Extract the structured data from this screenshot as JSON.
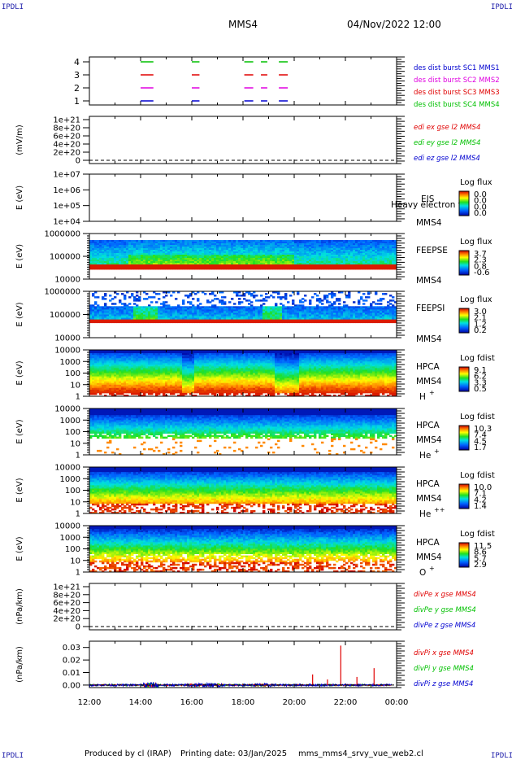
{
  "header": {
    "corner_tl": "IPDLI",
    "corner_tr": "IPDLI",
    "corner_bl": "IPDLI",
    "corner_br": "IPDLI",
    "spacecraft": "MMS4",
    "datetime": "04/Nov/2022 12:00"
  },
  "footer": {
    "produced_by": "Produced by cl (IRAP)",
    "printing_date": "Printing date: 03/Jan/2025",
    "filename": "mms_mms4_srvy_vue_web2.cl"
  },
  "colors": {
    "red": "#e00000",
    "green": "#00c000",
    "blue": "#0000d0",
    "magenta": "#e000e0"
  },
  "chart_data": [
    {
      "type": "line",
      "id": "burst",
      "yticks": [
        "4",
        "3",
        "2",
        "1"
      ],
      "legend": [
        {
          "label": "des dist burst SC1 MMS1",
          "color": "#0000d0"
        },
        {
          "label": "des dist burst SC2 MMS2",
          "color": "#e000e0"
        },
        {
          "label": "des dist burst SC3 MMS3",
          "color": "#e00000"
        },
        {
          "label": "des dist burst SC4 MMS4",
          "color": "#00c000"
        }
      ],
      "intervals": [
        [
          14.0,
          14.5
        ],
        [
          16.0,
          16.3
        ],
        [
          18.05,
          18.4
        ],
        [
          18.7,
          18.95
        ],
        [
          19.4,
          19.75
        ]
      ]
    },
    {
      "type": "line",
      "id": "edi",
      "ylabel": "(mV/m)",
      "yticks": [
        "1e+21",
        "8e+20",
        "6e+20",
        "4e+20",
        "2e+20",
        "0"
      ],
      "legend": [
        {
          "label": "edi ex gse l2 MMS4",
          "color": "#e00000"
        },
        {
          "label": "edi ey gse l2 MMS4",
          "color": "#00c000"
        },
        {
          "label": "edi ez gse l2 MMS4",
          "color": "#0000d0"
        }
      ]
    },
    {
      "type": "heatmap",
      "id": "eis",
      "ylabel": "E (eV)",
      "yticks": [
        "1e+07",
        "1e+06",
        "1e+05",
        "1e+04"
      ],
      "instrument": "EIS",
      "instrument_extra": "Heavy electron to",
      "sc": "MMS4",
      "cb_title": "Log flux",
      "cb_ticks": [
        "0.0",
        "0.0",
        "0.0",
        "0.0"
      ]
    },
    {
      "type": "heatmap",
      "id": "feepse",
      "ylabel": "E (eV)",
      "yticks": [
        "1000000",
        "100000",
        "10000"
      ],
      "instrument": "FEEPSE",
      "sc": "MMS4",
      "cb_title": "Log flux",
      "cb_ticks": [
        "3.7",
        "2.3",
        "0.8",
        "-0.6"
      ]
    },
    {
      "type": "heatmap",
      "id": "feepsi",
      "ylabel": "E (eV)",
      "yticks": [
        "1000000",
        "100000",
        "10000"
      ],
      "instrument": "FEEPSI",
      "sc": "MMS4",
      "cb_title": "Log flux",
      "cb_ticks": [
        "3.0",
        "2.1",
        "1.2",
        "0.2"
      ]
    },
    {
      "type": "heatmap",
      "id": "hpca_h",
      "ylabel": "E (eV)",
      "yticks": [
        "10000",
        "1000",
        "100",
        "10",
        "1"
      ],
      "instrument": "HPCA",
      "sc": "MMS4",
      "species": "H",
      "species_sup": "+",
      "cb_title": "Log fdist",
      "cb_ticks": [
        "9.1",
        "6.2",
        "3.3",
        "0.5"
      ]
    },
    {
      "type": "heatmap",
      "id": "hpca_he",
      "ylabel": "E (eV)",
      "yticks": [
        "10000",
        "1000",
        "100",
        "10",
        "1"
      ],
      "instrument": "HPCA",
      "sc": "MMS4",
      "species": "He",
      "species_sup": "+",
      "cb_title": "Log fdist",
      "cb_ticks": [
        "10.3",
        "7.4",
        "4.5",
        "1.7"
      ]
    },
    {
      "type": "heatmap",
      "id": "hpca_hepp",
      "ylabel": "E (eV)",
      "yticks": [
        "10000",
        "1000",
        "100",
        "10",
        "1"
      ],
      "instrument": "HPCA",
      "sc": "MMS4",
      "species": "He",
      "species_sup": "++",
      "cb_title": "Log fdist",
      "cb_ticks": [
        "10.0",
        "7.1",
        "4.2",
        "1.4"
      ]
    },
    {
      "type": "heatmap",
      "id": "hpca_o",
      "ylabel": "E (eV)",
      "yticks": [
        "10000",
        "1000",
        "100",
        "10",
        "1"
      ],
      "instrument": "HPCA",
      "sc": "MMS4",
      "species": "O",
      "species_sup": "+",
      "cb_title": "Log fdist",
      "cb_ticks": [
        "11.5",
        "8.6",
        "5.7",
        "2.9"
      ]
    },
    {
      "type": "line",
      "id": "divpe",
      "ylabel": "(nPa/km)",
      "yticks": [
        "1e+21",
        "8e+20",
        "6e+20",
        "4e+20",
        "2e+20",
        "0"
      ],
      "legend": [
        {
          "label": "divPe x gse MMS4",
          "color": "#e00000"
        },
        {
          "label": "divPe y gse MMS4",
          "color": "#00c000"
        },
        {
          "label": "divPe z gse MMS4",
          "color": "#0000d0"
        }
      ]
    },
    {
      "type": "line",
      "id": "divpi",
      "ylabel": "(nPa/km)",
      "yticks": [
        "0.03",
        "0.02",
        "0.01",
        "0.00"
      ],
      "ylim": [
        -0.002,
        0.035
      ],
      "legend": [
        {
          "label": "divPi x gse MMS4",
          "color": "#e00000"
        },
        {
          "label": "divPi y gse MMS4",
          "color": "#00c000"
        },
        {
          "label": "divPi z gse MMS4",
          "color": "#0000d0"
        }
      ],
      "spikes_x": [
        {
          "t": 21.82,
          "v": 0.0315
        },
        {
          "t": 23.12,
          "v": 0.0135
        },
        {
          "t": 20.72,
          "v": 0.0085
        },
        {
          "t": 22.45,
          "v": 0.0065
        },
        {
          "t": 21.3,
          "v": 0.0045
        }
      ]
    }
  ],
  "xaxis": {
    "ticks": [
      "12:00",
      "14:00",
      "16:00",
      "18:00",
      "20:00",
      "22:00",
      "00:00"
    ],
    "range": [
      12,
      24
    ]
  }
}
